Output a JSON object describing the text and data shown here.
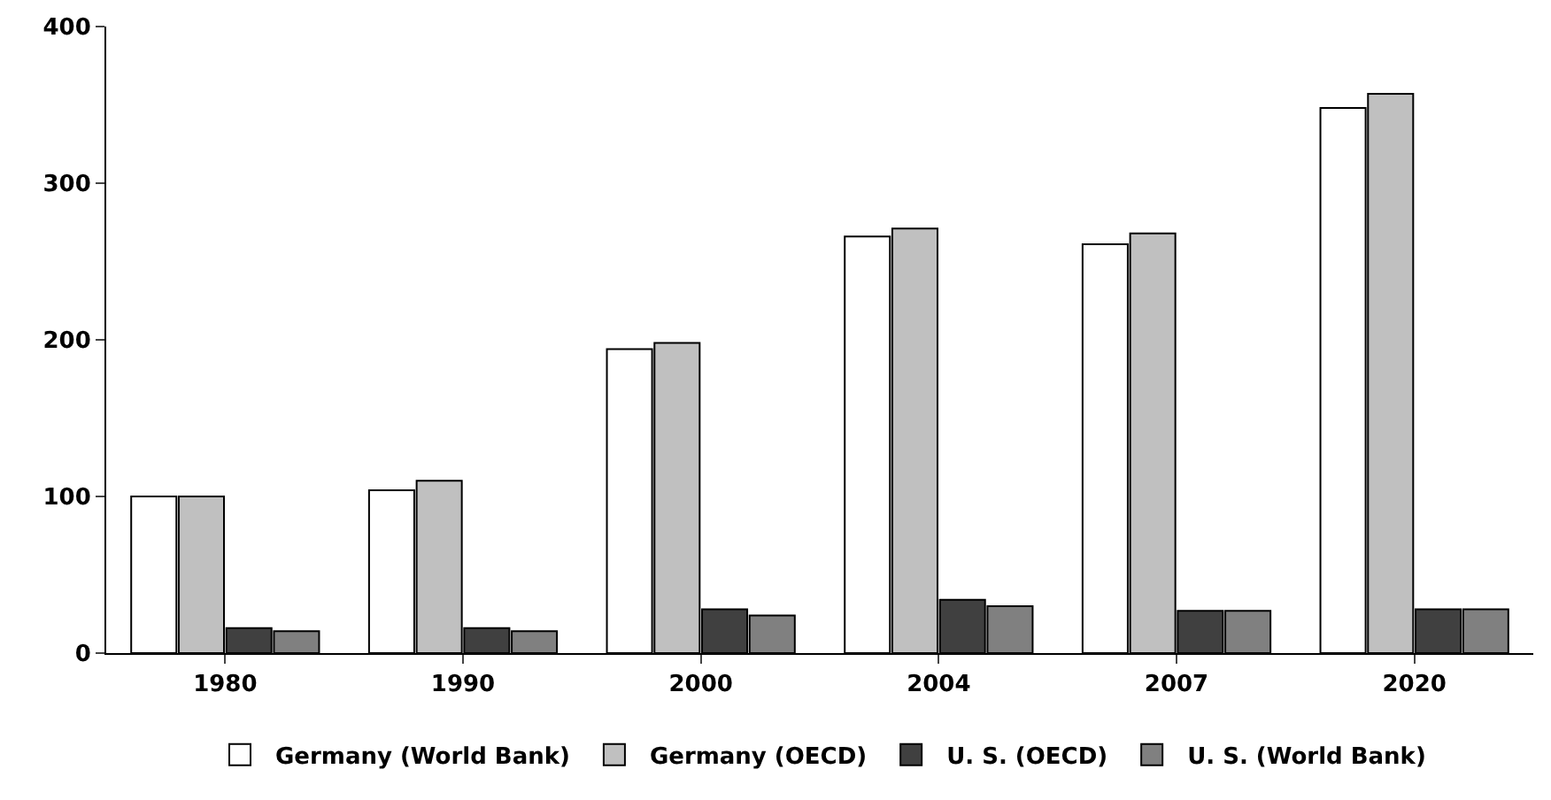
{
  "chart_data": {
    "type": "bar",
    "categories": [
      "1980",
      "1990",
      "2000",
      "2004",
      "2007",
      "2020"
    ],
    "series": [
      {
        "name": "Germany (World Bank)",
        "color": "#ffffff",
        "values": [
          100,
          104,
          194,
          266,
          261,
          348
        ]
      },
      {
        "name": "Germany (OECD)",
        "color": "#c0c0c0",
        "values": [
          100,
          110,
          198,
          271,
          268,
          357
        ]
      },
      {
        "name": "U. S. (OECD)",
        "color": "#404040",
        "values": [
          16,
          16,
          28,
          34,
          27,
          28
        ]
      },
      {
        "name": "U. S. (World Bank)",
        "color": "#808080",
        "values": [
          14,
          14,
          24,
          30,
          27,
          28
        ]
      }
    ],
    "ylim": [
      0,
      400
    ],
    "yticks": [
      0,
      100,
      200,
      300,
      400
    ],
    "grid": false,
    "legend": "bottom"
  }
}
